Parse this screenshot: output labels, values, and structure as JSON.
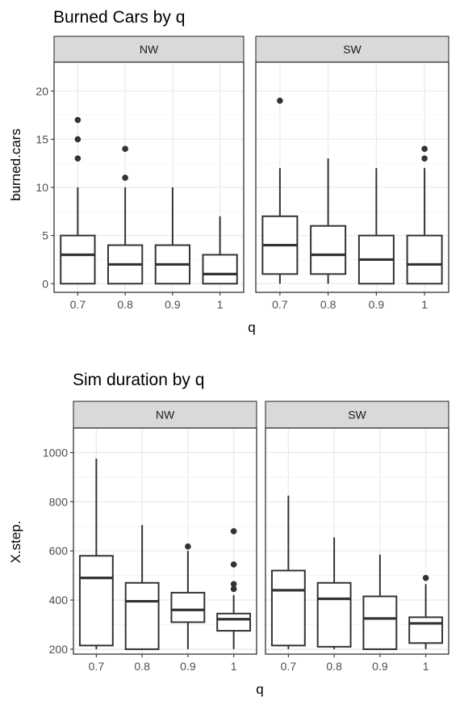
{
  "chart_data": [
    {
      "type": "box",
      "title": "Burned Cars by q",
      "xlabel": "q",
      "ylabel": "burned.cars",
      "categories": [
        "0.7",
        "0.8",
        "0.9",
        "1"
      ],
      "ylim": [
        -0.9,
        23
      ],
      "yticks": [
        0,
        5,
        10,
        15,
        20
      ],
      "grid": true,
      "facets": [
        {
          "name": "NW",
          "boxes": [
            {
              "q": "0.7",
              "min": 0,
              "q1": 0,
              "median": 3,
              "q3": 5,
              "max": 10,
              "outliers": [
                13,
                15,
                17
              ]
            },
            {
              "q": "0.8",
              "min": 0,
              "q1": 0,
              "median": 2,
              "q3": 4,
              "max": 10,
              "outliers": [
                11,
                14
              ]
            },
            {
              "q": "0.9",
              "min": 0,
              "q1": 0,
              "median": 2,
              "q3": 4,
              "max": 10,
              "outliers": []
            },
            {
              "q": "1",
              "min": 0,
              "q1": 0,
              "median": 1,
              "q3": 3,
              "max": 7,
              "outliers": []
            }
          ]
        },
        {
          "name": "SW",
          "boxes": [
            {
              "q": "0.7",
              "min": 0,
              "q1": 1,
              "median": 4,
              "q3": 7,
              "max": 12,
              "outliers": [
                19
              ]
            },
            {
              "q": "0.8",
              "min": 0,
              "q1": 1,
              "median": 3,
              "q3": 6,
              "max": 13,
              "outliers": []
            },
            {
              "q": "0.9",
              "min": 0,
              "q1": 0,
              "median": 2.5,
              "q3": 5,
              "max": 12,
              "outliers": []
            },
            {
              "q": "1",
              "min": 0,
              "q1": 0,
              "median": 2,
              "q3": 5,
              "max": 12,
              "outliers": [
                13,
                14
              ]
            }
          ]
        }
      ]
    },
    {
      "type": "box",
      "title": "Sim duration by q",
      "xlabel": "q",
      "ylabel": "X.step.",
      "categories": [
        "0.7",
        "0.8",
        "0.9",
        "1"
      ],
      "ylim": [
        180,
        1100
      ],
      "yticks": [
        200,
        400,
        600,
        800,
        1000
      ],
      "grid": true,
      "facets": [
        {
          "name": "NW",
          "boxes": [
            {
              "q": "0.7",
              "min": 200,
              "q1": 215,
              "median": 490,
              "q3": 580,
              "max": 975,
              "outliers": []
            },
            {
              "q": "0.8",
              "min": 200,
              "q1": 200,
              "median": 395,
              "q3": 470,
              "max": 705,
              "outliers": []
            },
            {
              "q": "0.9",
              "min": 200,
              "q1": 310,
              "median": 360,
              "q3": 430,
              "max": 600,
              "outliers": [
                618
              ]
            },
            {
              "q": "1",
              "min": 200,
              "q1": 275,
              "median": 322,
              "q3": 345,
              "max": 420,
              "outliers": [
                445,
                465,
                545,
                680
              ]
            }
          ]
        },
        {
          "name": "SW",
          "boxes": [
            {
              "q": "0.7",
              "min": 200,
              "q1": 215,
              "median": 440,
              "q3": 520,
              "max": 825,
              "outliers": []
            },
            {
              "q": "0.8",
              "min": 200,
              "q1": 210,
              "median": 405,
              "q3": 470,
              "max": 655,
              "outliers": []
            },
            {
              "q": "0.9",
              "min": 200,
              "q1": 200,
              "median": 325,
              "q3": 415,
              "max": 585,
              "outliers": []
            },
            {
              "q": "1",
              "min": 200,
              "q1": 225,
              "median": 305,
              "q3": 330,
              "max": 465,
              "outliers": [
                490
              ]
            }
          ]
        }
      ]
    }
  ]
}
